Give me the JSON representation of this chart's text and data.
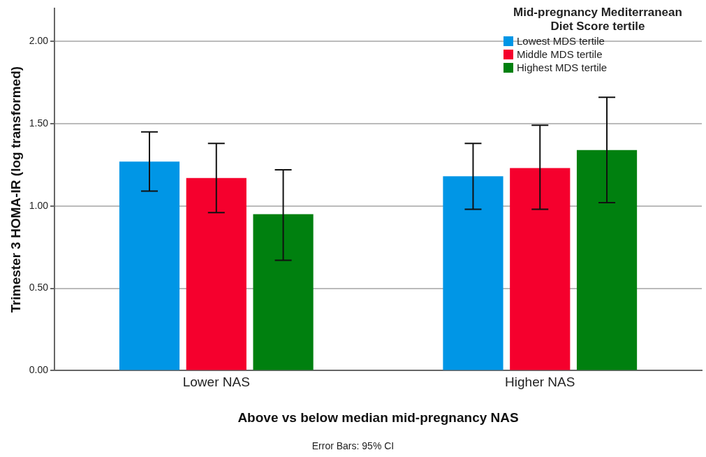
{
  "chart_data": {
    "type": "bar",
    "ylabel": "Trimester 3 HOMA-IR (log transformed)",
    "xlabel": "Above vs below median mid-pregnancy NAS",
    "legend_title": "Mid-pregnancy Mediterranean Diet Score tertile",
    "annotations": [
      "Error Bars: 95% CI"
    ],
    "categories": [
      "Lower NAS",
      "Higher NAS"
    ],
    "series": [
      {
        "name": "Lowest MDS tertile",
        "color": "#0096e6",
        "values": [
          1.27,
          1.18
        ],
        "errors": [
          [
            1.09,
            1.45
          ],
          [
            0.98,
            1.38
          ]
        ]
      },
      {
        "name": "Middle MDS tertile",
        "color": "#f5002d",
        "values": [
          1.17,
          1.23
        ],
        "errors": [
          [
            0.96,
            1.38
          ],
          [
            0.98,
            1.49
          ]
        ]
      },
      {
        "name": "Highest MDS tertile",
        "color": "#00800f",
        "values": [
          0.95,
          1.34
        ],
        "errors": [
          [
            0.67,
            1.22
          ],
          [
            1.02,
            1.66
          ]
        ]
      }
    ],
    "ylim": [
      0,
      2.2
    ],
    "yticks": [
      {
        "value": 0,
        "label": "0.00"
      },
      {
        "value": 0.5,
        "label": "0.50"
      },
      {
        "value": 1,
        "label": "1.00"
      },
      {
        "value": 1.5,
        "label": "1.50"
      },
      {
        "value": 2,
        "label": "2.00"
      }
    ],
    "grid": "y",
    "legend": "top right"
  }
}
